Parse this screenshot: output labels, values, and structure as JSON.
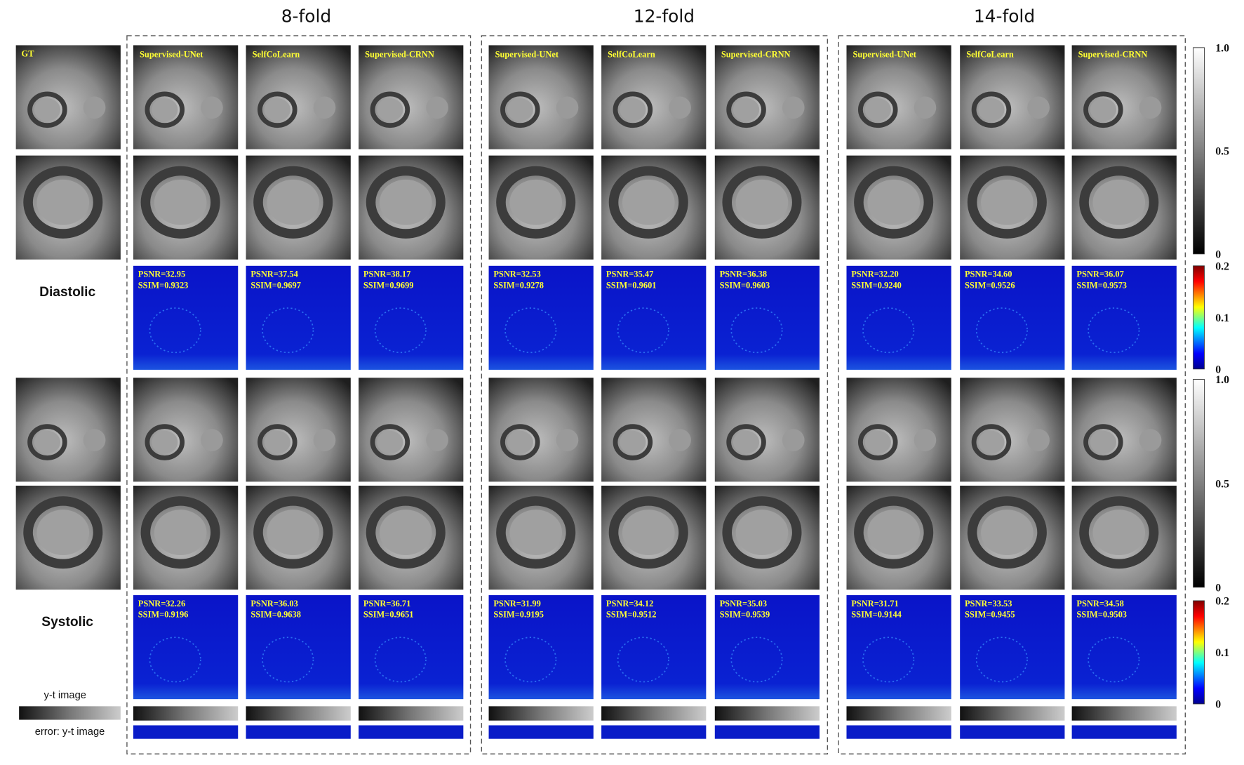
{
  "row_labels": {
    "gt": "GT",
    "diastolic": "Diastolic",
    "systolic": "Systolic",
    "yt": "y-t image",
    "yt_error": "error: y-t image"
  },
  "groups": [
    {
      "title": "8-fold",
      "methods": [
        "Supervised-UNet",
        "SelfCoLearn",
        "Supervised-CRNN"
      ],
      "diastolic": [
        [
          "PSNR=32.95",
          "SSIM=0.9323"
        ],
        [
          "PSNR=37.54",
          "SSIM=0.9697"
        ],
        [
          "PSNR=38.17",
          "SSIM=0.9699"
        ]
      ],
      "systolic": [
        [
          "PSNR=32.26",
          "SSIM=0.9196"
        ],
        [
          "PSNR=36.03",
          "SSIM=0.9638"
        ],
        [
          "PSNR=36.71",
          "SSIM=0.9651"
        ]
      ]
    },
    {
      "title": "12-fold",
      "methods": [
        "Supervised-UNet",
        "SelfCoLearn",
        "Supervised-CRNN"
      ],
      "diastolic": [
        [
          "PSNR=32.53",
          "SSIM=0.9278"
        ],
        [
          "PSNR=35.47",
          "SSIM=0.9601"
        ],
        [
          "PSNR=36.38",
          "SSIM=0.9603"
        ]
      ],
      "systolic": [
        [
          "PSNR=31.99",
          "SSIM=0.9195"
        ],
        [
          "PSNR=34.12",
          "SSIM=0.9512"
        ],
        [
          "PSNR=35.03",
          "SSIM=0.9539"
        ]
      ]
    },
    {
      "title": "14-fold",
      "methods": [
        "Supervised-UNet",
        "SelfCoLearn",
        "Supervised-CRNN"
      ],
      "diastolic": [
        [
          "PSNR=32.20",
          "SSIM=0.9240"
        ],
        [
          "PSNR=34.60",
          "SSIM=0.9526"
        ],
        [
          "PSNR=36.07",
          "SSIM=0.9573"
        ]
      ],
      "systolic": [
        [
          "PSNR=31.71",
          "SSIM=0.9144"
        ],
        [
          "PSNR=33.53",
          "SSIM=0.9455"
        ],
        [
          "PSNR=34.58",
          "SSIM=0.9503"
        ]
      ]
    }
  ],
  "colorbars": [
    [
      "1.0",
      "0.5",
      "0"
    ],
    [
      "0.2",
      "0.1",
      "0"
    ],
    [
      "1.0",
      "0.5",
      "0"
    ],
    [
      "0.2",
      "0.1",
      "0"
    ]
  ]
}
